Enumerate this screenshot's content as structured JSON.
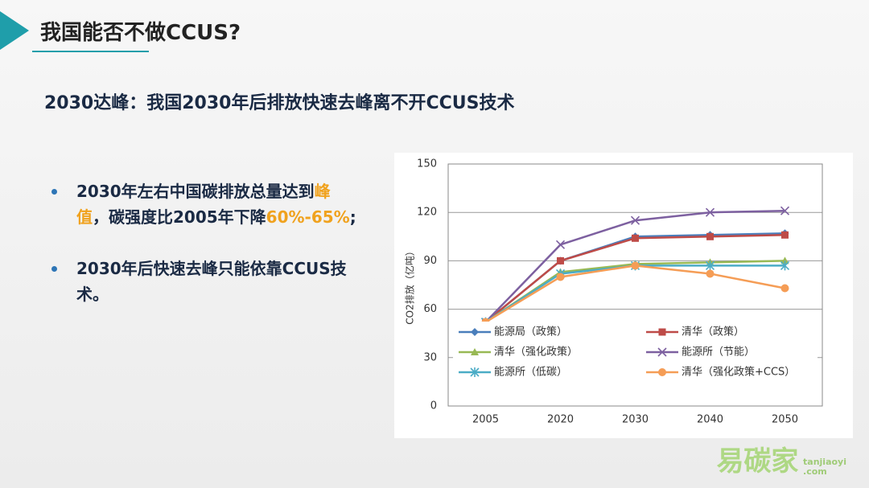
{
  "title": "我国能否不做CCUS?",
  "subtitle": "2030达峰：我国2030年后排放快速去峰离不开CCUS技术",
  "bullets": [
    [
      {
        "text": "2030年左右中国碳排放总量达到",
        "color": "#1a2a44"
      },
      {
        "text": "峰值",
        "color": "#f0a21e"
      },
      {
        "text": "，碳强度比2005年下降",
        "color": "#1a2a44"
      },
      {
        "text": "60%-65%",
        "color": "#f0a21e"
      },
      {
        "text": ";",
        "color": "#1a2a44"
      }
    ],
    [
      {
        "text": "2030年后快速去峰只能依靠CCUS技术。",
        "color": "#1a2a44"
      }
    ]
  ],
  "watermark": {
    "brand": "易碳家",
    "site": "tanjiaoyi",
    "domain": ".com"
  },
  "chart_data": {
    "type": "line",
    "y_label": "CO2排放（亿吨）",
    "categories": [
      "2005",
      "2020",
      "2030",
      "2040",
      "2050"
    ],
    "ylim": [
      0,
      150
    ],
    "yticks": [
      0,
      30,
      60,
      90,
      120,
      150
    ],
    "grid": true,
    "series": [
      {
        "name": "能源局（政策）",
        "color": "#4a7ebb",
        "marker": "diamond",
        "values": [
          52,
          90,
          105,
          106,
          107
        ]
      },
      {
        "name": "清华（政策）",
        "color": "#be4b48",
        "marker": "square",
        "values": [
          52,
          90,
          104,
          105,
          106
        ]
      },
      {
        "name": "清华（强化政策）",
        "color": "#98b954",
        "marker": "triangle",
        "values": [
          52,
          83,
          88,
          89,
          90
        ]
      },
      {
        "name": "能源所（节能）",
        "color": "#7d60a0",
        "marker": "x",
        "values": [
          52,
          100,
          115,
          120,
          121
        ]
      },
      {
        "name": "能源所（低碳）",
        "color": "#4bacc6",
        "marker": "star",
        "values": [
          52,
          82,
          87,
          87,
          87
        ]
      },
      {
        "name": "清华（强化政策+CCS）",
        "color": "#f59d56",
        "marker": "circle",
        "values": [
          52,
          80,
          87,
          82,
          73
        ]
      }
    ]
  }
}
